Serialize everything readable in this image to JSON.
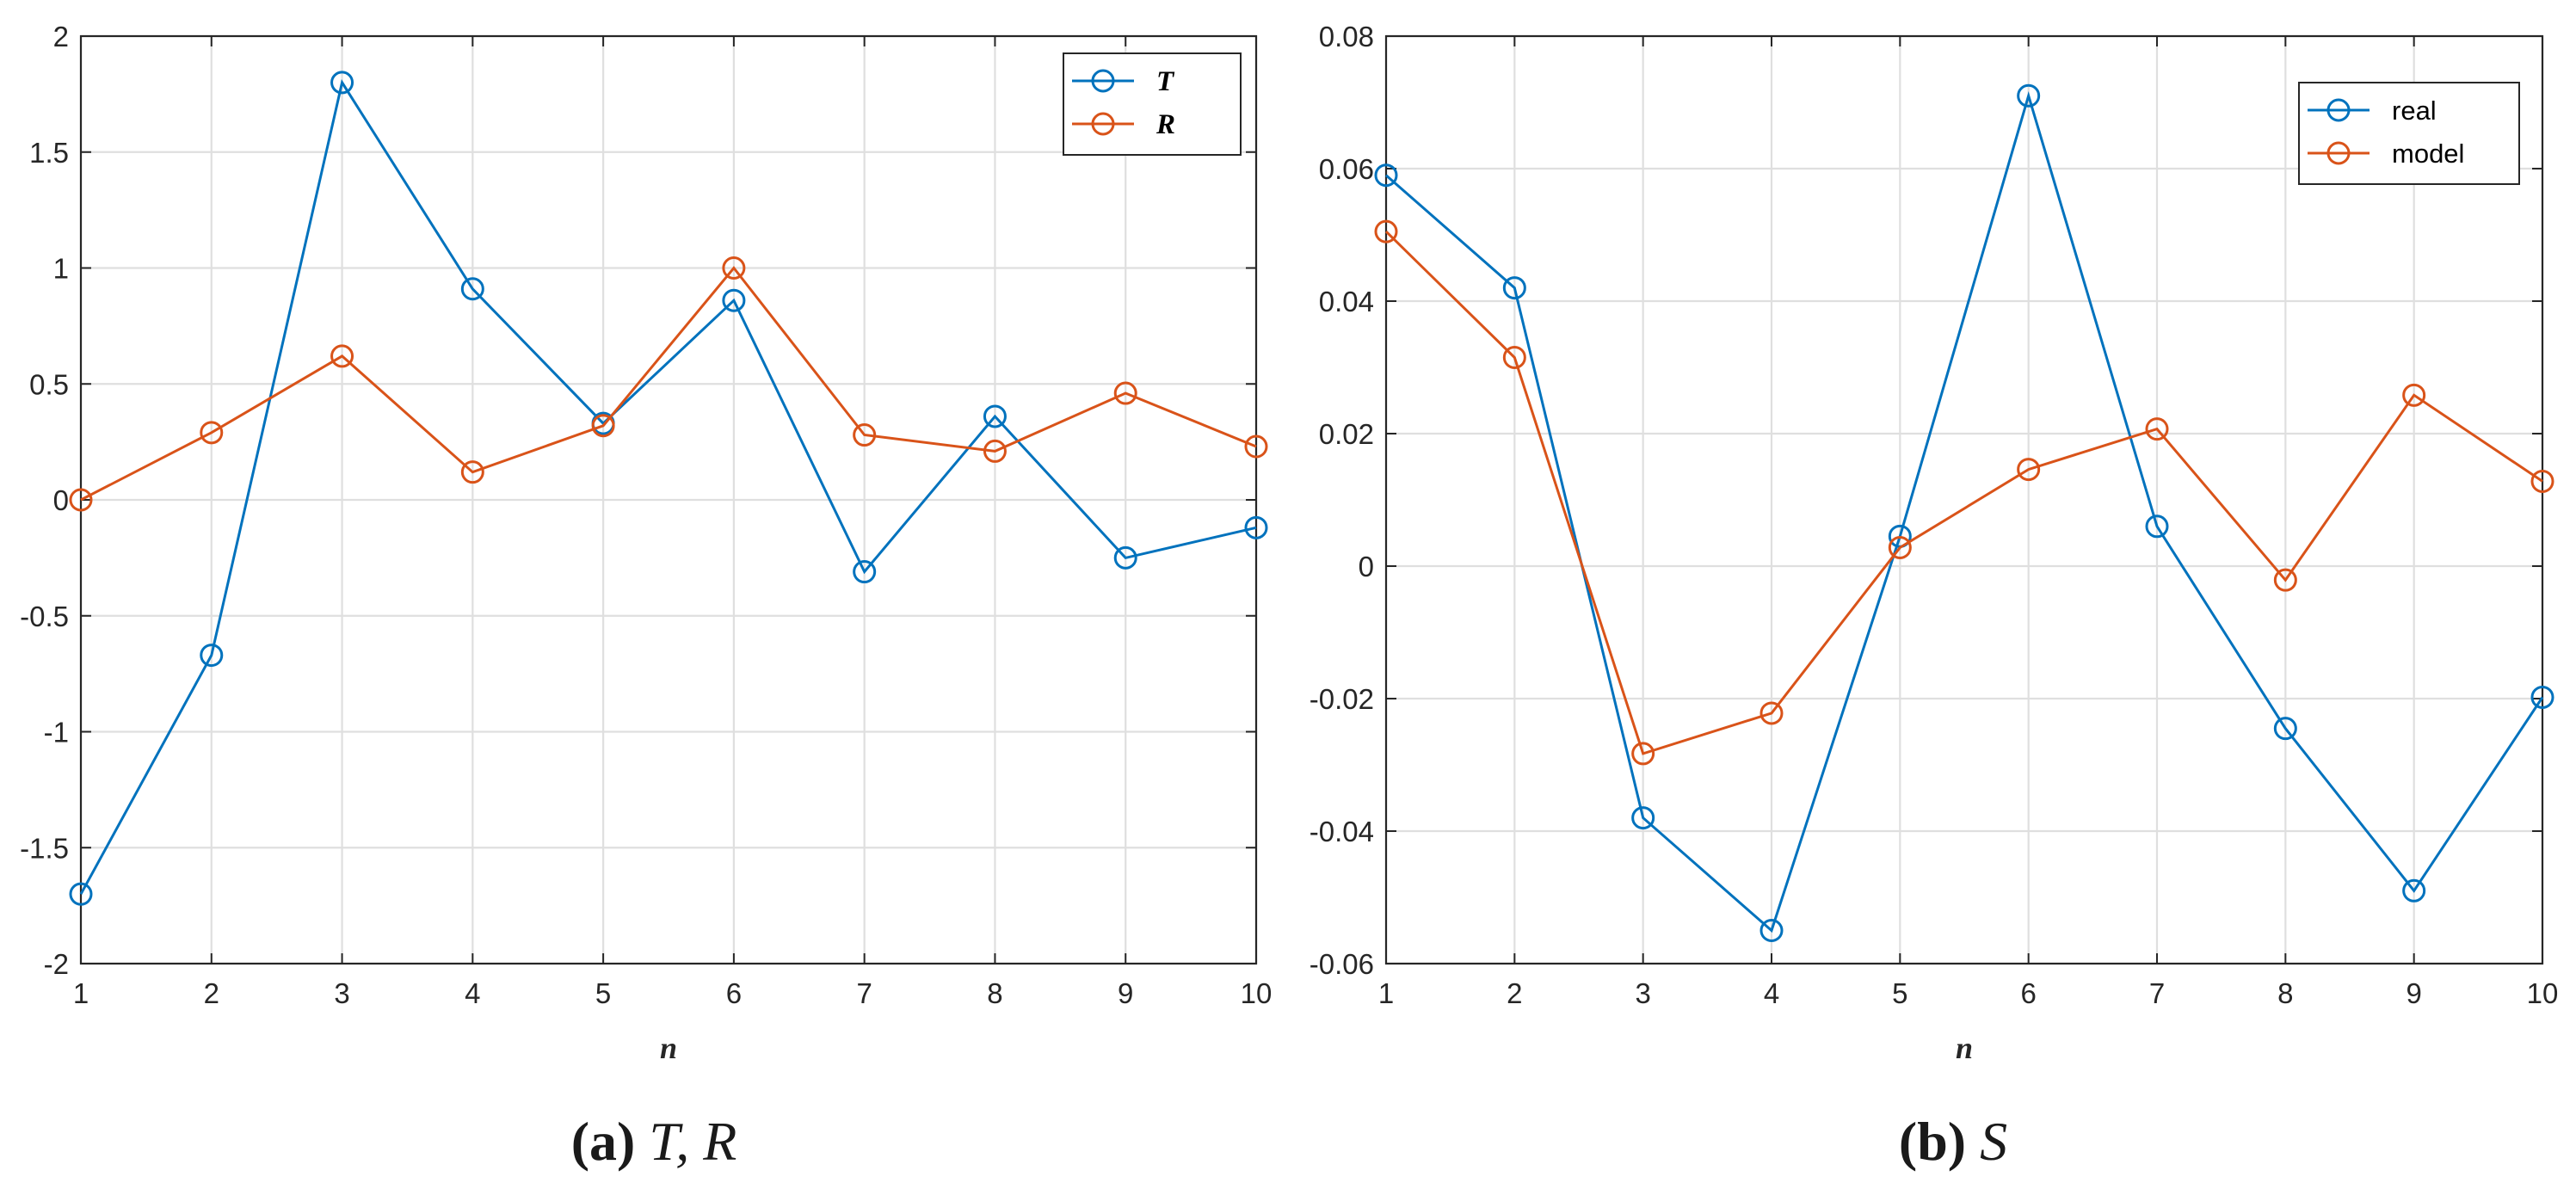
{
  "chart_data": [
    {
      "type": "line",
      "xlabel": "n",
      "ylabel": "",
      "xlim": [
        1,
        10
      ],
      "ylim": [
        -2,
        2
      ],
      "grid": true,
      "legend_position": "top-right",
      "legend_style": "italic",
      "x": [
        1,
        2,
        3,
        4,
        5,
        6,
        7,
        8,
        9,
        10
      ],
      "xticks": [
        "1",
        "2",
        "3",
        "4",
        "5",
        "6",
        "7",
        "8",
        "9",
        "10"
      ],
      "yticks": [
        "-2",
        "-1.5",
        "-1",
        "-0.5",
        "0",
        "0.5",
        "1",
        "1.5",
        "2"
      ],
      "ytick_values": [
        -2,
        -1.5,
        -1,
        -0.5,
        0,
        0.5,
        1,
        1.5,
        2
      ],
      "series": [
        {
          "name": "T",
          "color": "#0072BD",
          "values": [
            -1.7,
            -0.67,
            1.8,
            0.91,
            0.33,
            0.86,
            -0.31,
            0.36,
            -0.25,
            -0.12
          ]
        },
        {
          "name": "R",
          "color": "#D95319",
          "values": [
            0.0,
            0.29,
            0.62,
            0.12,
            0.32,
            1.0,
            0.28,
            0.21,
            0.46,
            0.23
          ]
        }
      ],
      "caption_tag": "(a)",
      "caption_text": "T, R"
    },
    {
      "type": "line",
      "xlabel": "n",
      "ylabel": "",
      "xlim": [
        1,
        10
      ],
      "ylim": [
        -0.06,
        0.08
      ],
      "grid": true,
      "legend_position": "top-right",
      "legend_style": "normal",
      "x": [
        1,
        2,
        3,
        4,
        5,
        6,
        7,
        8,
        9,
        10
      ],
      "xticks": [
        "1",
        "2",
        "3",
        "4",
        "5",
        "6",
        "7",
        "8",
        "9",
        "10"
      ],
      "yticks": [
        "-0.06",
        "-0.04",
        "-0.02",
        "0",
        "0.02",
        "0.04",
        "0.06",
        "0.08"
      ],
      "ytick_values": [
        -0.06,
        -0.04,
        -0.02,
        0,
        0.02,
        0.04,
        0.06,
        0.08
      ],
      "series": [
        {
          "name": "real",
          "color": "#0072BD",
          "values": [
            0.059,
            0.042,
            -0.038,
            -0.055,
            0.0045,
            0.071,
            0.006,
            -0.0245,
            -0.049,
            -0.0198
          ]
        },
        {
          "name": "model",
          "color": "#D95319",
          "values": [
            0.0505,
            0.0315,
            -0.0283,
            -0.0222,
            0.0028,
            0.0146,
            0.0207,
            -0.0021,
            0.0258,
            0.0128
          ]
        }
      ],
      "caption_tag": "(b)",
      "caption_text": "S"
    }
  ]
}
